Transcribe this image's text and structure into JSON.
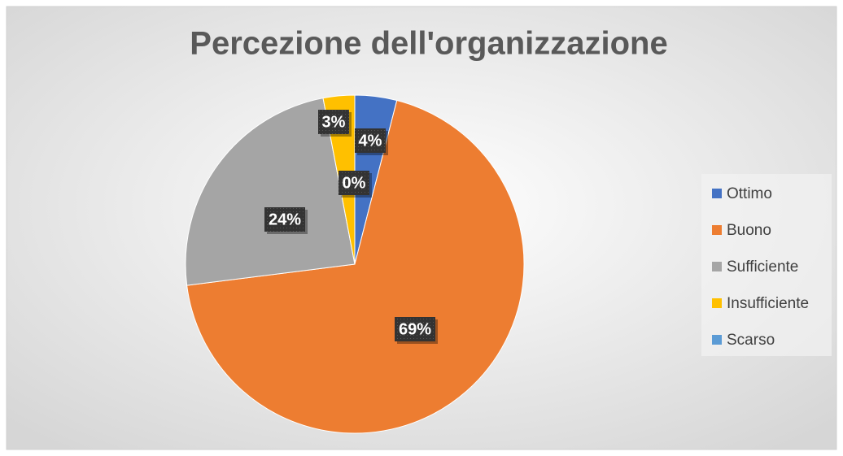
{
  "chart_data": {
    "type": "pie",
    "title": "Percezione dell'organizzazione",
    "categories": [
      "Ottimo",
      "Buono",
      "Sufficiente",
      "Insufficiente",
      "Scarso"
    ],
    "values": [
      4,
      69,
      24,
      3,
      0
    ],
    "value_labels": [
      "4%",
      "69%",
      "24%",
      "3%",
      "0%"
    ],
    "colors": [
      "#4472c4",
      "#ed7d31",
      "#a5a5a5",
      "#ffc000",
      "#5b9bd5"
    ],
    "legend": "right"
  }
}
